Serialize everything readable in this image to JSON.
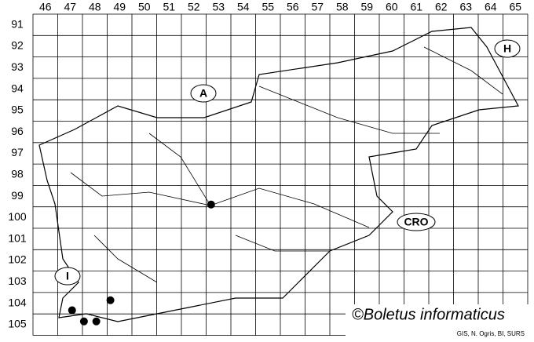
{
  "columns": [
    "46",
    "47",
    "48",
    "49",
    "50",
    "51",
    "52",
    "53",
    "54",
    "55",
    "56",
    "57",
    "58",
    "59",
    "60",
    "61",
    "62",
    "63",
    "64",
    "65"
  ],
  "rows": [
    "91",
    "92",
    "93",
    "94",
    "95",
    "96",
    "97",
    "98",
    "99",
    "100",
    "101",
    "102",
    "103",
    "104",
    "105"
  ],
  "countries": [
    {
      "label": "A"
    },
    {
      "label": "H"
    },
    {
      "label": "CRO"
    },
    {
      "label": "I"
    }
  ],
  "localities": [
    {
      "x": 47.08,
      "y": 104.33
    },
    {
      "x": 47.56,
      "y": 104.85
    },
    {
      "x": 48.06,
      "y": 104.85
    },
    {
      "x": 48.63,
      "y": 103.86
    },
    {
      "x": 52.7,
      "y": 99.39
    }
  ],
  "title": "©Boletus informaticus",
  "credit": "GIS, N. Ogris, BI, SURS"
}
